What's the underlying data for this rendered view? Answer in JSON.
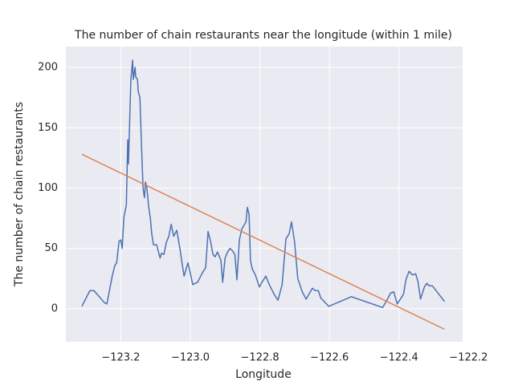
{
  "chart_data": {
    "type": "line",
    "title": "The number of chain restaurants near the longitude (within 1 mile)",
    "x_label": "Longitude",
    "y_label": "The number of chain restaurants",
    "grid": true,
    "background": "#eaeaf2",
    "xlim": [
      -123.358,
      -122.217
    ],
    "ylim": [
      -27.3,
      217.3
    ],
    "xticks": [
      {
        "value": -123.2,
        "label": "−123.2"
      },
      {
        "value": -123.0,
        "label": "−123.0"
      },
      {
        "value": -122.8,
        "label": "−122.8"
      },
      {
        "value": -122.6,
        "label": "−122.6"
      },
      {
        "value": -122.4,
        "label": "−122.4"
      },
      {
        "value": -122.2,
        "label": "−122.2"
      }
    ],
    "yticks": [
      0,
      50,
      100,
      150,
      200
    ],
    "series": [
      {
        "color": "#4c72b0",
        "x": [
          -123.312,
          -123.289,
          -123.277,
          -123.247,
          -123.24,
          -123.224,
          -123.217,
          -123.212,
          -123.205,
          -123.2,
          -123.196,
          -123.191,
          -123.184,
          -123.18,
          -123.178,
          -123.175,
          -123.171,
          -123.166,
          -123.164,
          -123.159,
          -123.157,
          -123.152,
          -123.15,
          -123.145,
          -123.141,
          -123.136,
          -123.132,
          -123.129,
          -123.125,
          -123.12,
          -123.115,
          -123.111,
          -123.106,
          -123.097,
          -123.087,
          -123.083,
          -123.076,
          -123.069,
          -123.062,
          -123.055,
          -123.048,
          -123.039,
          -123.03,
          -123.025,
          -123.018,
          -123.007,
          -123.002,
          -122.993,
          -122.979,
          -122.965,
          -122.956,
          -122.949,
          -122.942,
          -122.935,
          -122.929,
          -122.922,
          -122.912,
          -122.907,
          -122.9,
          -122.893,
          -122.886,
          -122.879,
          -122.872,
          -122.866,
          -122.859,
          -122.852,
          -122.84,
          -122.836,
          -122.831,
          -122.827,
          -122.822,
          -122.813,
          -122.806,
          -122.801,
          -122.794,
          -122.783,
          -122.773,
          -122.759,
          -122.748,
          -122.736,
          -122.725,
          -122.716,
          -122.709,
          -122.7,
          -122.691,
          -122.678,
          -122.667,
          -122.655,
          -122.649,
          -122.641,
          -122.632,
          -122.625,
          -122.602,
          -122.537,
          -122.447,
          -122.433,
          -122.424,
          -122.415,
          -122.405,
          -122.387,
          -122.38,
          -122.371,
          -122.361,
          -122.352,
          -122.345,
          -122.338,
          -122.327,
          -122.32,
          -122.313,
          -122.304,
          -122.269
        ],
        "values": [
          2,
          15,
          15,
          5,
          4,
          28,
          36,
          38,
          56,
          57,
          50,
          76,
          86,
          140,
          120,
          150,
          190,
          206,
          190,
          200,
          192,
          190,
          180,
          175,
          140,
          100,
          92,
          105,
          100,
          85,
          75,
          62,
          53,
          53,
          42,
          46,
          45,
          55,
          60,
          70,
          60,
          65,
          50,
          40,
          27,
          38,
          32,
          20,
          22,
          30,
          34,
          64,
          56,
          45,
          43,
          47,
          40,
          22,
          42,
          47,
          50,
          48,
          45,
          24,
          57,
          66,
          72,
          84,
          78,
          40,
          33,
          28,
          22,
          18,
          22,
          27,
          20,
          12,
          7,
          20,
          58,
          62,
          72,
          55,
          25,
          14,
          8,
          14,
          17,
          15,
          15,
          9,
          2,
          10,
          1,
          8,
          13,
          14,
          4,
          12,
          24,
          31,
          28,
          29,
          22,
          8,
          18,
          21,
          19,
          19,
          6
        ]
      },
      {
        "color": "#dd8452",
        "x": [
          -123.312,
          -122.269
        ],
        "values": [
          128,
          -17
        ]
      }
    ]
  }
}
